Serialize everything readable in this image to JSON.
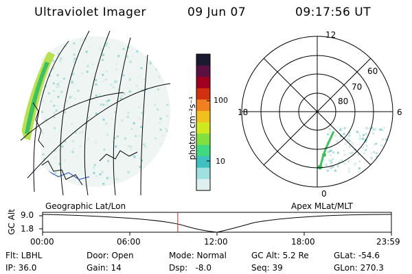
{
  "header": {
    "title": "Ultraviolet Imager",
    "date": "09 Jun 07",
    "time": "09:17:56 UT"
  },
  "colorbar": {
    "unit_label": "photon cm⁻²s⁻¹",
    "ticks": [
      "100",
      "10"
    ],
    "colors": [
      "#1a1a30",
      "#5a1040",
      "#a00020",
      "#d03010",
      "#f08020",
      "#f0c020",
      "#d0e820",
      "#80e040",
      "#40d880",
      "#40c0c0",
      "#a0e0e0",
      "#e0f0f0"
    ]
  },
  "polar_plot": {
    "clock_labels": [
      "12",
      "18",
      "6",
      "0"
    ],
    "lat_labels": [
      "60",
      "70",
      "80"
    ]
  },
  "altitude_panel": {
    "left_label": "Geographic Lat/Lon",
    "right_label": "Apex MLat/MLT",
    "ylabel": "GC Alt",
    "y_ticks": [
      "9.0",
      "1.8"
    ],
    "x_ticks": [
      "00:00",
      "06:00",
      "12:00",
      "18:00",
      "23:59"
    ],
    "current_time_marker_hours": 9.3
  },
  "info": {
    "flt": "Flt: LBHL",
    "ip": "IP: 36.0",
    "door": "Door: Open",
    "gain": "Gain: 14",
    "mode": "Mode: Normal",
    "dsp": "Dsp:   -8.0",
    "gc_alt": "GC Alt: 5.2 Re",
    "seq": "Seq: 39",
    "glat": "GLat: -54.6",
    "glon": "GLon: 270.3"
  }
}
